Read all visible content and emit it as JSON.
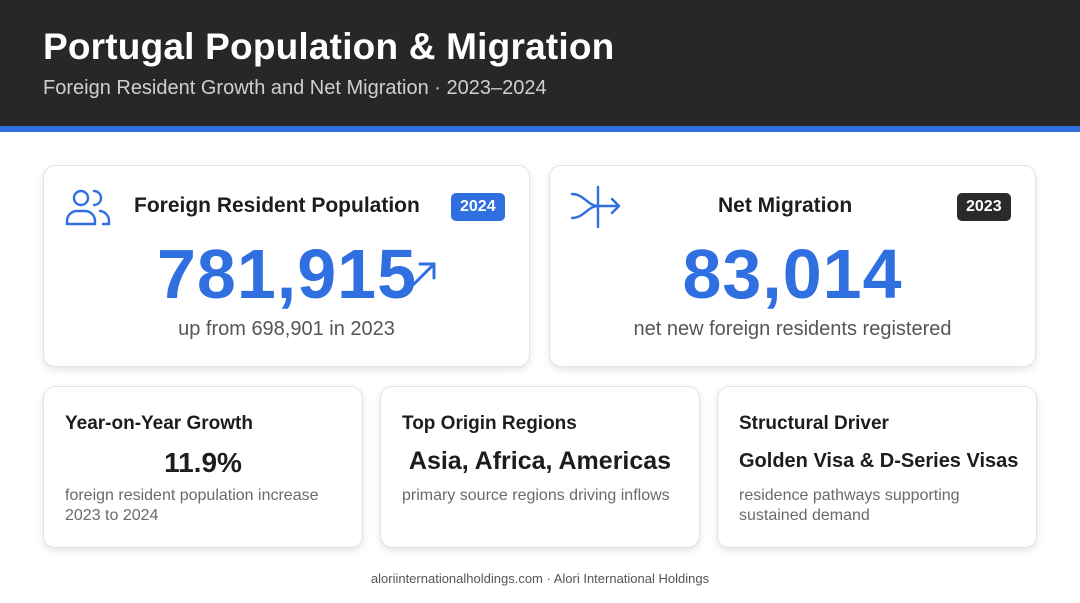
{
  "header": {
    "title": "Portugal Population & Migration",
    "subtitle": "Foreign Resident Growth and Net Migration · 2023–2024"
  },
  "colors": {
    "accent": "#2f6fe0",
    "header_bg": "#272727",
    "dark_badge": "#2a2a2a"
  },
  "card_foreign": {
    "icon": "people-icon",
    "title": "Foreign Resident Population",
    "badge": "2024",
    "value": "781,915",
    "trend_icon": "arrow-up-right-icon",
    "caption": "up from 698,901 in 2023"
  },
  "card_migration": {
    "icon": "merge-arrow-icon",
    "title": "Net Migration",
    "badge": "2023",
    "value": "83,014",
    "caption": "net new foreign residents registered"
  },
  "card_growth": {
    "title": "Year-on-Year Growth",
    "value": "11.9%",
    "caption": "foreign resident population increase 2023 to 2024"
  },
  "card_origin": {
    "title": "Top Origin Regions",
    "value": "Asia, Africa, Americas",
    "caption": "primary source regions driving inflows"
  },
  "card_driver": {
    "title": "Structural Driver",
    "value": "Golden Visa & D-Series Visas",
    "caption": "residence pathways supporting sustained demand"
  },
  "footer": {
    "text": "aloriinternationalholdings.com · Alori International Holdings"
  }
}
